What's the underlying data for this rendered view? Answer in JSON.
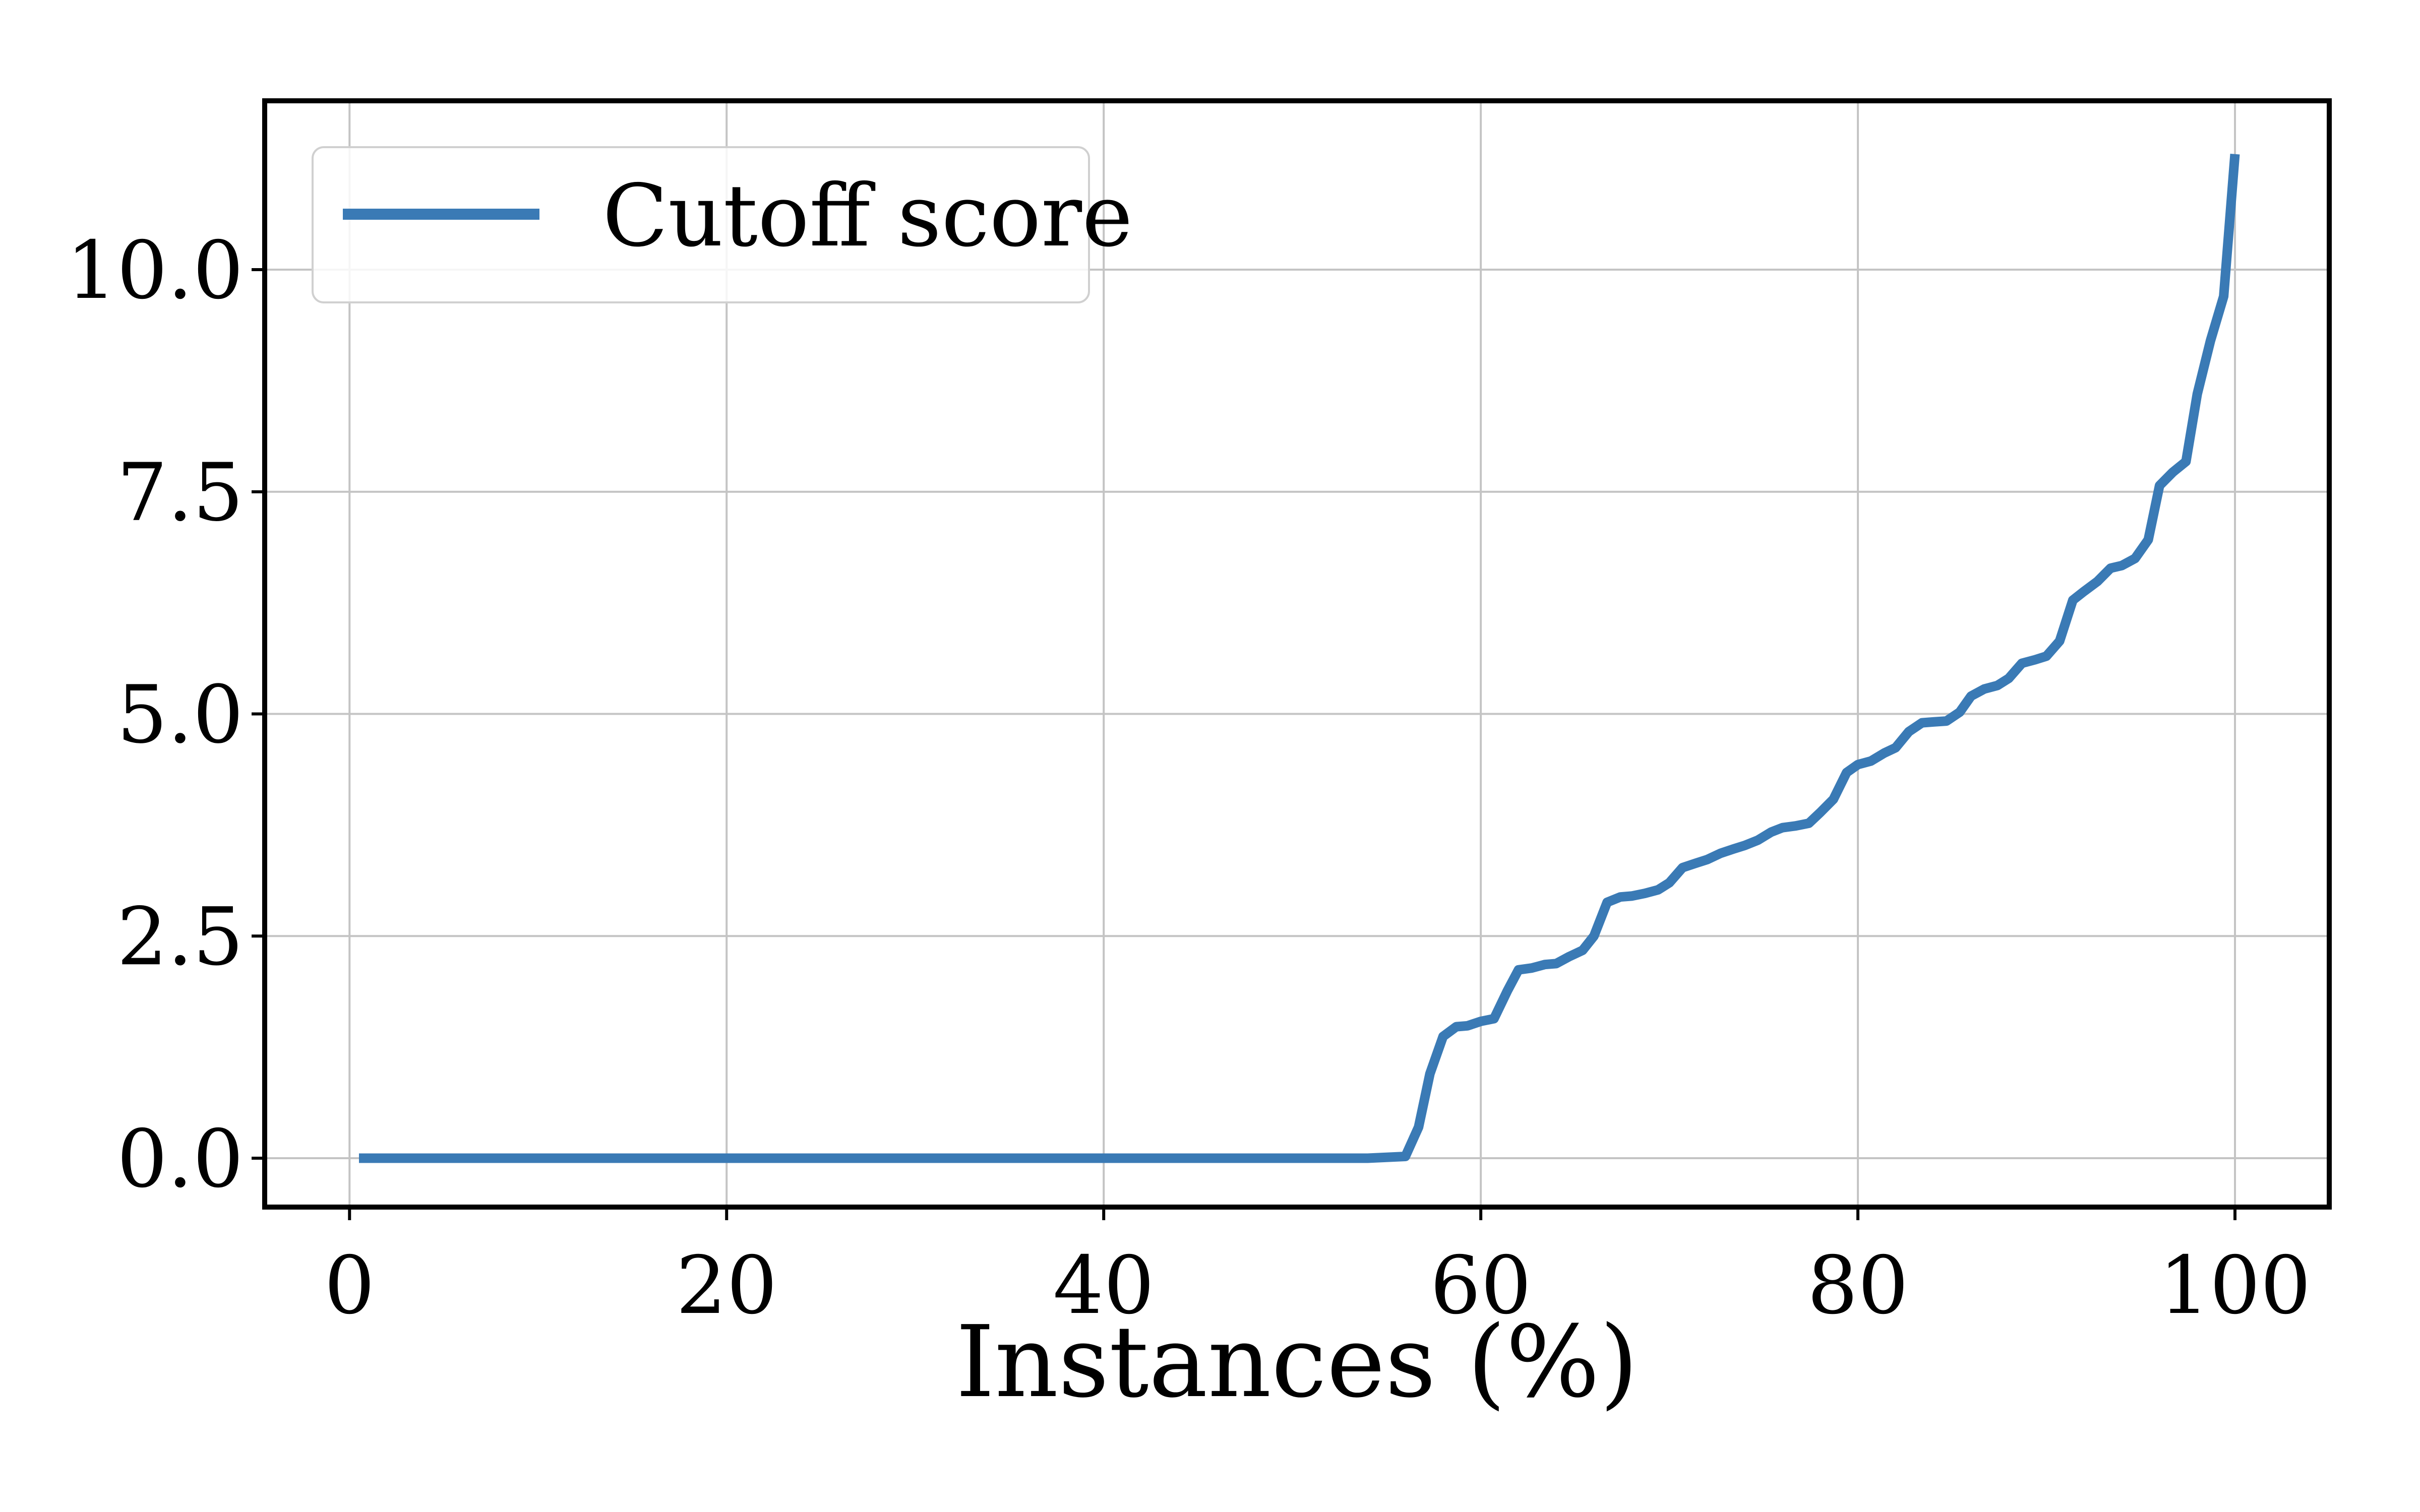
{
  "chart_data": {
    "type": "line",
    "title": "",
    "xlabel": "Instances (%)",
    "ylabel": "",
    "xlim": [
      -4.5,
      105
    ],
    "ylim": [
      -0.55,
      11.9
    ],
    "xticks": [
      0,
      20,
      40,
      60,
      80,
      100
    ],
    "xtick_labels": [
      "0",
      "20",
      "40",
      "60",
      "80",
      "100"
    ],
    "yticks": [
      0.0,
      2.5,
      5.0,
      7.5,
      10.0
    ],
    "ytick_labels": [
      "0.0",
      "2.5",
      "5.0",
      "7.5",
      "10.0"
    ],
    "grid": true,
    "legend_position": "top-left",
    "line_color": "#3a7ab5",
    "series": [
      {
        "name": "Cutoff score",
        "x": [
          0.5,
          54,
          56,
          56.7,
          57.3,
          58,
          58.7,
          59.3,
          60,
          60.7,
          61.4,
          62,
          62.7,
          63.4,
          64,
          64.7,
          65.4,
          66,
          66.7,
          67.4,
          68,
          68.7,
          69.4,
          70,
          70.7,
          71.4,
          72,
          72.7,
          73.4,
          74,
          74.7,
          75.4,
          76,
          76.7,
          77.4,
          78,
          78.7,
          79.4,
          80,
          80.7,
          81.4,
          82,
          82.7,
          83.4,
          84,
          84.7,
          85.4,
          86,
          86.7,
          87.4,
          88,
          88.7,
          89.4,
          90,
          90.7,
          91.4,
          92,
          92.7,
          93.4,
          94,
          94.7,
          95.4,
          96,
          96.7,
          97.4,
          98,
          98.7,
          99.4,
          100
        ],
        "y": [
          0.0,
          0.0,
          0.02,
          0.35,
          0.95,
          1.37,
          1.48,
          1.49,
          1.54,
          1.57,
          1.88,
          2.12,
          2.14,
          2.18,
          2.19,
          2.27,
          2.34,
          2.5,
          2.88,
          2.94,
          2.95,
          2.98,
          3.02,
          3.1,
          3.27,
          3.32,
          3.36,
          3.43,
          3.48,
          3.52,
          3.58,
          3.67,
          3.72,
          3.74,
          3.77,
          3.89,
          4.04,
          4.34,
          4.43,
          4.47,
          4.56,
          4.62,
          4.8,
          4.9,
          4.91,
          4.92,
          5.02,
          5.2,
          5.28,
          5.32,
          5.4,
          5.57,
          5.61,
          5.65,
          5.82,
          6.28,
          6.38,
          6.49,
          6.64,
          6.67,
          6.75,
          6.96,
          7.57,
          7.72,
          7.84,
          8.6,
          9.2,
          9.7,
          11.3
        ]
      }
    ]
  }
}
